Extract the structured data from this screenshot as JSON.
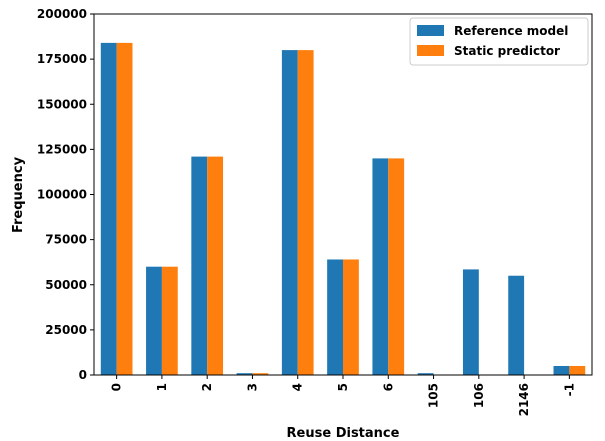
{
  "chart_data": {
    "type": "bar",
    "xlabel": "Reuse Distance",
    "ylabel": "Frequency",
    "categories": [
      "0",
      "1",
      "2",
      "3",
      "4",
      "5",
      "6",
      "105",
      "106",
      "2146",
      "-1"
    ],
    "series": [
      {
        "name": "Reference model",
        "color": "#1f77b4",
        "values": [
          184000,
          60000,
          121000,
          1000,
          180000,
          64000,
          120000,
          1000,
          58500,
          55000,
          5000
        ]
      },
      {
        "name": "Static predictor",
        "color": "#ff7f0e",
        "values": [
          184000,
          60000,
          121000,
          1000,
          180000,
          64000,
          120000,
          0,
          0,
          0,
          5000
        ]
      }
    ],
    "ylim": [
      0,
      200000
    ],
    "yticks": [
      0,
      25000,
      50000,
      75000,
      100000,
      125000,
      150000,
      175000,
      200000
    ],
    "grid": false,
    "legend_position": "top-right"
  }
}
